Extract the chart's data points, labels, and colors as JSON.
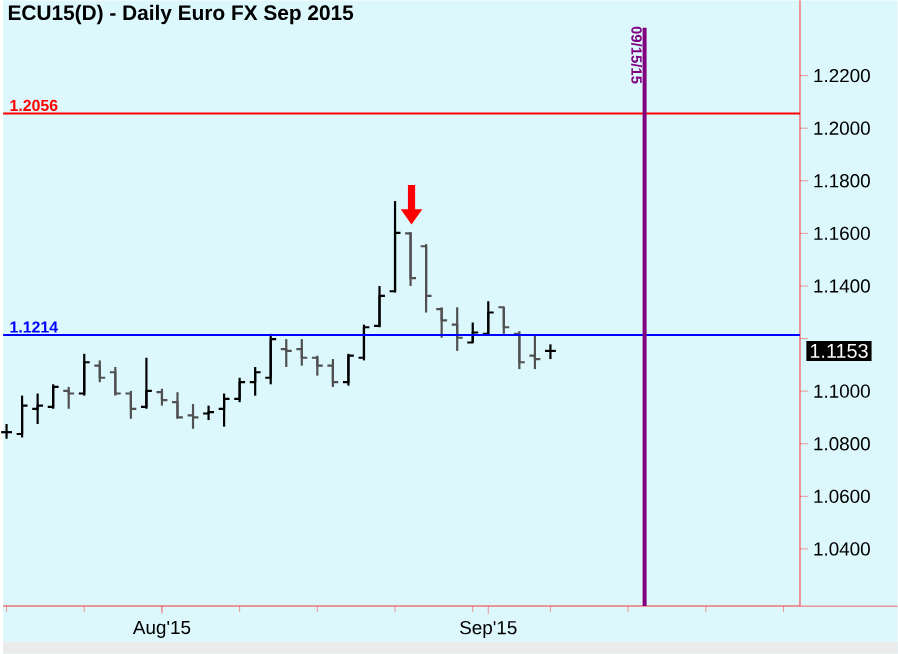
{
  "chart_data": {
    "type": "candlestick",
    "title": "ECU15(D) - Daily  Euro FX Sep 2015",
    "categories": [
      null,
      null,
      null,
      null,
      null,
      null,
      null,
      null,
      null,
      null,
      "Aug'15",
      null,
      null,
      null,
      null,
      null,
      null,
      null,
      null,
      null,
      null,
      null,
      null,
      null,
      null,
      null,
      null,
      null,
      null,
      null,
      null,
      "Sep'15",
      null,
      null,
      null,
      null,
      null,
      null,
      null,
      null,
      null,
      null,
      null,
      null,
      null,
      null,
      null,
      null,
      null,
      null,
      null,
      null
    ],
    "ohlc": [
      [
        1.0844,
        1.0875,
        1.0819,
        1.0844
      ],
      [
        1.0837,
        1.0983,
        1.0824,
        1.0945
      ],
      [
        1.0933,
        1.0991,
        1.0875,
        1.0945
      ],
      [
        1.094,
        1.1026,
        1.0933,
        1.1016
      ],
      [
        1.1001,
        1.1016,
        1.0933,
        1.0991
      ],
      [
        1.0991,
        1.1142,
        1.0983,
        1.111
      ],
      [
        1.1097,
        1.1117,
        1.1034,
        1.1051
      ],
      [
        1.1072,
        1.1092,
        1.0983,
        1.0991
      ],
      [
        1.0991,
        1.1001,
        1.0895,
        1.0933
      ],
      [
        1.094,
        1.1127,
        1.0933,
        1.1001
      ],
      [
        1.0996,
        1.1009,
        1.0945,
        1.0966
      ],
      [
        1.0958,
        1.0996,
        1.0895,
        1.09
      ],
      [
        1.0908,
        1.0951,
        1.0857,
        1.09
      ],
      [
        1.0915,
        1.0945,
        1.089,
        1.092
      ],
      [
        1.0933,
        1.0991,
        1.0865,
        1.0971
      ],
      [
        1.0971,
        1.1051,
        1.0958,
        1.1034
      ],
      [
        1.1034,
        1.1092,
        1.0983,
        1.1072
      ],
      [
        1.1051,
        1.1218,
        1.1026,
        1.1198
      ],
      [
        1.116,
        1.1198,
        1.1092,
        1.1153
      ],
      [
        1.116,
        1.1198,
        1.1097,
        1.1127
      ],
      [
        1.1127,
        1.1135,
        1.1059,
        1.1097
      ],
      [
        1.1097,
        1.1122,
        1.1016,
        1.1034
      ],
      [
        1.1034,
        1.1142,
        1.1021,
        1.1135
      ],
      [
        1.1127,
        1.1253,
        1.1117,
        1.1243
      ],
      [
        1.1248,
        1.14,
        1.1243,
        1.1362
      ],
      [
        1.138,
        1.1723,
        1.1375,
        1.1602
      ],
      [
        1.16,
        1.1605,
        1.14,
        1.143
      ],
      [
        1.1551,
        1.1559,
        1.1299,
        1.1362
      ],
      [
        1.1312,
        1.1319,
        1.1203,
        1.1269
      ],
      [
        1.1253,
        1.1319,
        1.1153,
        1.1203
      ],
      [
        1.1185,
        1.1261,
        1.1185,
        1.1223
      ],
      [
        1.1218,
        1.1342,
        1.1211,
        1.1299
      ],
      [
        1.1319,
        1.1319,
        1.1218,
        1.1243
      ],
      [
        1.1218,
        1.1228,
        1.1084,
        1.111
      ],
      [
        1.1135,
        1.1211,
        1.1084,
        1.1122
      ],
      [
        1.1153,
        1.1178,
        1.1122,
        1.1153
      ],
      null,
      null,
      null,
      null,
      null,
      null,
      null,
      null,
      null,
      null,
      null,
      null,
      null,
      null,
      null,
      null
    ],
    "colors": [
      "#000000",
      "#000000",
      "#000000",
      "#000000",
      "#505050",
      "#000000",
      "#505050",
      "#505050",
      "#505050",
      "#000000",
      "#505050",
      "#505050",
      "#505050",
      "#000000",
      "#000000",
      "#000000",
      "#000000",
      "#000000",
      "#505050",
      "#505050",
      "#505050",
      "#505050",
      "#000000",
      "#000000",
      "#000000",
      "#000000",
      "#505050",
      "#505050",
      "#505050",
      "#505050",
      "#000000",
      "#000000",
      "#505050",
      "#505050",
      "#505050",
      "#000000",
      null,
      null,
      null,
      null,
      null,
      null,
      null,
      null,
      null,
      null,
      null,
      null,
      null,
      null,
      null,
      null
    ],
    "ylim": [
      1.0183,
      1.2486
    ],
    "yticks": [
      {
        "value": 1.04,
        "label": "1.0400"
      },
      {
        "value": 1.06,
        "label": "1.0600"
      },
      {
        "value": 1.08,
        "label": "1.0800"
      },
      {
        "value": 1.1,
        "label": "1.1000"
      },
      {
        "value": 1.12,
        "label": null
      },
      {
        "value": 1.14,
        "label": "1.1400"
      },
      {
        "value": 1.16,
        "label": "1.1600"
      },
      {
        "value": 1.18,
        "label": "1.1800"
      },
      {
        "value": 1.2,
        "label": "1.2000"
      },
      {
        "value": 1.22,
        "label": "1.2200"
      }
    ],
    "ref_lines": [
      {
        "axis": "y",
        "value": 1.2056,
        "label": "1.2056",
        "color": "#ff0000"
      },
      {
        "axis": "y",
        "value": 1.1214,
        "label": "1.1214",
        "color": "#0000ff"
      }
    ],
    "annotations": [
      "09/15/15",
      "1.1153"
    ]
  }
}
